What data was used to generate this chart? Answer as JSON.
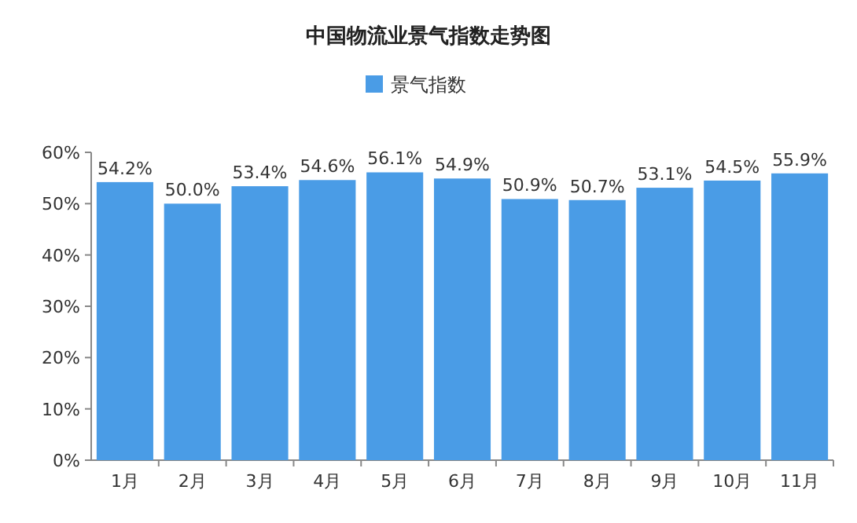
{
  "chart_data": {
    "type": "bar",
    "title": "中国物流业景气指数走势图",
    "categories": [
      "1月",
      "2月",
      "3月",
      "4月",
      "5月",
      "6月",
      "7月",
      "8月",
      "9月",
      "10月",
      "11月"
    ],
    "series": [
      {
        "name": "景气指数",
        "color": "#4a9ce6",
        "values": [
          54.2,
          50.0,
          53.4,
          54.6,
          56.1,
          54.9,
          50.9,
          50.7,
          53.1,
          54.5,
          55.9
        ],
        "value_labels": [
          "54.2%",
          "50.0%",
          "53.4%",
          "54.6%",
          "56.1%",
          "54.9%",
          "50.9%",
          "50.7%",
          "53.1%",
          "54.5%",
          "55.9%"
        ]
      }
    ],
    "ylim": [
      0,
      60
    ],
    "yticks": [
      {
        "value": 0,
        "label": "0%"
      },
      {
        "value": 10,
        "label": "10%"
      },
      {
        "value": 20,
        "label": "20%"
      },
      {
        "value": 30,
        "label": "30%"
      },
      {
        "value": 40,
        "label": "40%"
      },
      {
        "value": 50,
        "label": "50%"
      },
      {
        "value": 60,
        "label": "60%"
      }
    ],
    "legend": "top"
  }
}
